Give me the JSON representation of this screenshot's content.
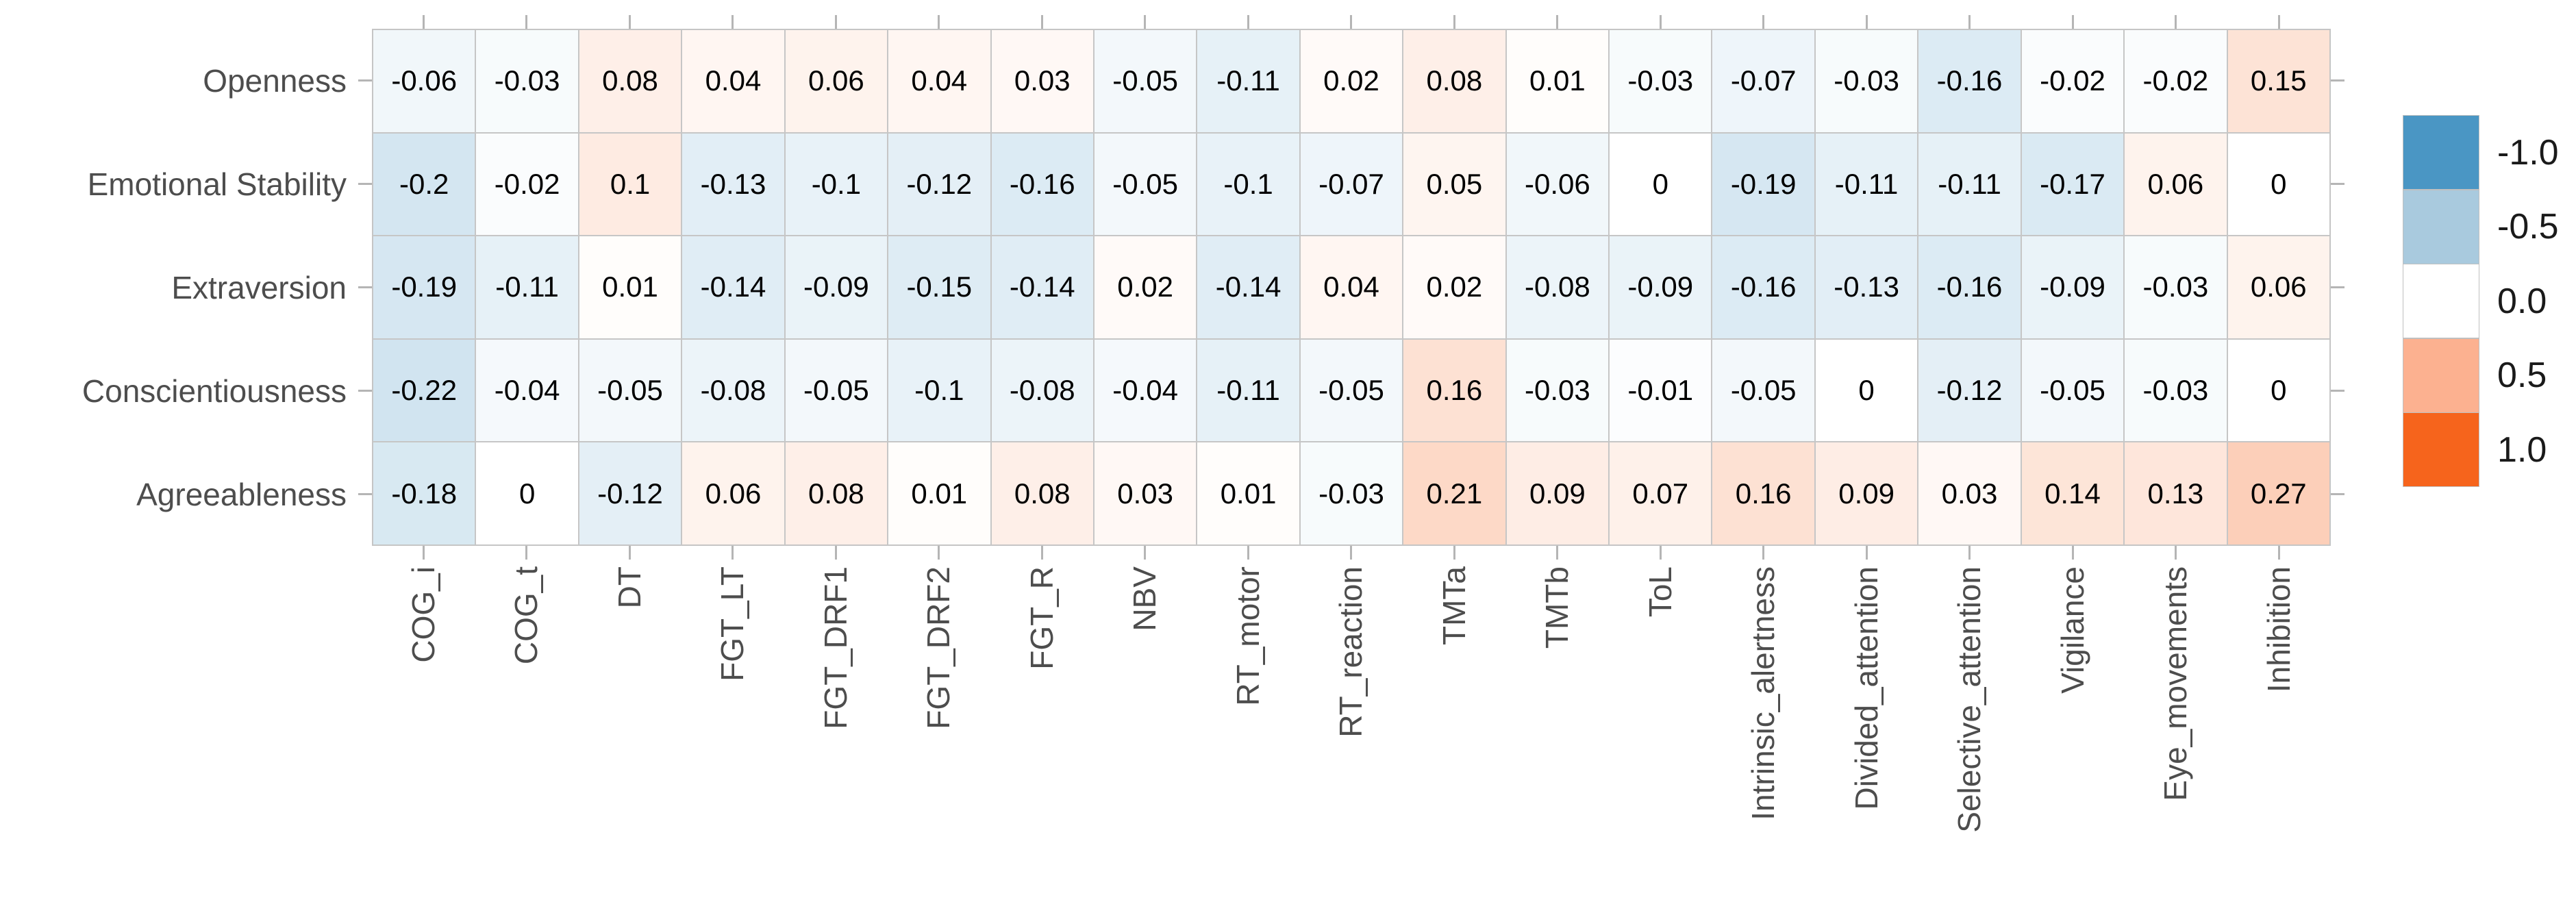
{
  "chart_data": {
    "type": "heatmap",
    "title": "",
    "xlabel": "",
    "ylabel": "",
    "rows": [
      "Openness",
      "Emotional Stability",
      "Extraversion",
      "Conscientiousness",
      "Agreeableness"
    ],
    "columns": [
      "COG_i",
      "COG_t",
      "DT",
      "FGT_LT",
      "FGT_DRF1",
      "FGT_DRF2",
      "FGT_R",
      "NBV",
      "RT_motor",
      "RT_reaction",
      "TMTa",
      "TMTb",
      "ToL",
      "Intrinsic_alertness",
      "Divided_attention",
      "Selective_attention",
      "Vigilance",
      "Eye_movements",
      "Inhibition"
    ],
    "values": [
      [
        -0.06,
        -0.03,
        0.08,
        0.04,
        0.06,
        0.04,
        0.03,
        -0.05,
        -0.11,
        0.02,
        0.08,
        0.01,
        -0.03,
        -0.07,
        -0.03,
        -0.16,
        -0.02,
        -0.02,
        0.15
      ],
      [
        -0.2,
        -0.02,
        0.1,
        -0.13,
        -0.1,
        -0.12,
        -0.16,
        -0.05,
        -0.1,
        -0.07,
        0.05,
        -0.06,
        0,
        -0.19,
        -0.11,
        -0.11,
        -0.17,
        0.06,
        0
      ],
      [
        -0.19,
        -0.11,
        0.01,
        -0.14,
        -0.09,
        -0.15,
        -0.14,
        0.02,
        -0.14,
        0.04,
        0.02,
        -0.08,
        -0.09,
        -0.16,
        -0.13,
        -0.16,
        -0.09,
        -0.03,
        0.06
      ],
      [
        -0.22,
        -0.04,
        -0.05,
        -0.08,
        -0.05,
        -0.1,
        -0.08,
        -0.04,
        -0.11,
        -0.05,
        0.16,
        -0.03,
        -0.01,
        -0.05,
        0,
        -0.12,
        -0.05,
        -0.03,
        0
      ],
      [
        -0.18,
        0,
        -0.12,
        0.06,
        0.08,
        0.01,
        0.08,
        0.03,
        0.01,
        -0.03,
        0.21,
        0.09,
        0.07,
        0.16,
        0.09,
        0.03,
        0.14,
        0.13,
        0.27
      ]
    ],
    "value_range": [
      -1,
      1
    ],
    "grid": true,
    "colorscale": {
      "negative": "#4a96c4",
      "zero": "#ffffff",
      "positive": "#f6641c"
    },
    "legend": {
      "position": "right",
      "labels": [
        "-1.0",
        "-0.5",
        "0.0",
        "0.5",
        "1.0"
      ],
      "colors": [
        "#4a96c4",
        "#a9cade",
        "#ffffff",
        "#fcb190",
        "#f6641c"
      ]
    },
    "grid_color": "#c6c6c6",
    "axis_label_color": "#4d4d4d",
    "value_text_color": "#000000",
    "tick_color": "#b5b5b5"
  }
}
